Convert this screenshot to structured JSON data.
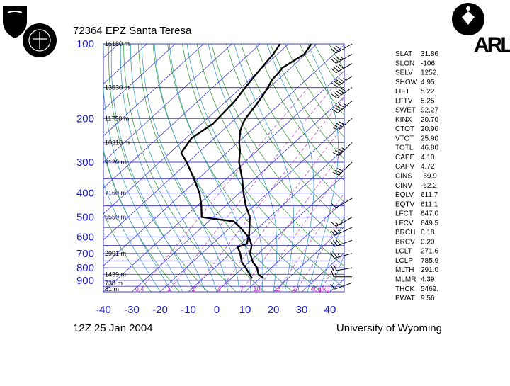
{
  "header": {
    "station": "72364 EPZ Santa Teresa",
    "time": "12Z 25 Jan 2004",
    "credit": "University of Wyoming",
    "logo_text": "ARL"
  },
  "chart_data": {
    "type": "line",
    "subtype": "skew-T log-P diagram",
    "xlabel": "",
    "ylabel": "",
    "x_ticks": [
      "-40",
      "-30",
      "-20",
      "-10",
      "0",
      "10",
      "20",
      "30",
      "40"
    ],
    "y_ticks": [
      {
        "p": 100,
        "label": "100"
      },
      {
        "p": 200,
        "label": "200"
      },
      {
        "p": 300,
        "label": "300"
      },
      {
        "p": 400,
        "label": "400"
      },
      {
        "p": 500,
        "label": "500"
      },
      {
        "p": 600,
        "label": "600"
      },
      {
        "p": 700,
        "label": "700"
      },
      {
        "p": 800,
        "label": "800"
      },
      {
        "p": 900,
        "label": "900"
      }
    ],
    "xlim": [
      -40,
      45
    ],
    "plim": [
      1000,
      100
    ],
    "height_labels": [
      {
        "p": 100,
        "label": "16180 m"
      },
      {
        "p": 150,
        "label": "13630 m"
      },
      {
        "p": 200,
        "label": "11750 m"
      },
      {
        "p": 250,
        "label": "10310 m"
      },
      {
        "p": 300,
        "label": "9120 m"
      },
      {
        "p": 400,
        "label": "7160 m"
      },
      {
        "p": 500,
        "label": "5550 m"
      },
      {
        "p": 700,
        "label": "2991 m"
      },
      {
        "p": 850,
        "label": "1439 m"
      },
      {
        "p": 925,
        "label": "738 m"
      },
      {
        "p": 1000,
        "label": "81 m"
      }
    ],
    "mixing_ratio_labels": [
      "0.4",
      "1",
      "2",
      "4",
      "7",
      "10",
      "16",
      "24",
      "40g/kg"
    ],
    "mixing_ratio_values": [
      0.4,
      1,
      2,
      4,
      7,
      10,
      16,
      24,
      40
    ],
    "series": [
      {
        "name": "",
        "role": "temperature",
        "points": [
          {
            "p": 881,
            "t": 11.2
          },
          {
            "p": 850,
            "t": 8.0
          },
          {
            "p": 800,
            "t": 5.0
          },
          {
            "p": 760,
            "t": 1.4
          },
          {
            "p": 700,
            "t": -3.0
          },
          {
            "p": 650,
            "t": -5.5
          },
          {
            "p": 600,
            "t": -9.8
          },
          {
            "p": 560,
            "t": -12.5
          },
          {
            "p": 500,
            "t": -17.0
          },
          {
            "p": 450,
            "t": -22.8
          },
          {
            "p": 400,
            "t": -28.5
          },
          {
            "p": 350,
            "t": -34.5
          },
          {
            "p": 300,
            "t": -42.0
          },
          {
            "p": 270,
            "t": -46.0
          },
          {
            "p": 250,
            "t": -49.5
          },
          {
            "p": 225,
            "t": -53.5
          },
          {
            "p": 210,
            "t": -55.5
          },
          {
            "p": 200,
            "t": -56.5
          },
          {
            "p": 170,
            "t": -58.5
          },
          {
            "p": 150,
            "t": -60.5
          },
          {
            "p": 140,
            "t": -62.0
          },
          {
            "p": 130,
            "t": -62.5
          },
          {
            "p": 125,
            "t": -63.0
          },
          {
            "p": 110,
            "t": -60.5
          },
          {
            "p": 100,
            "t": -62.0
          }
        ]
      },
      {
        "name": "",
        "role": "dewpoint",
        "points": [
          {
            "p": 881,
            "t": 7.2
          },
          {
            "p": 800,
            "t": 1.0
          },
          {
            "p": 760,
            "t": -2.5
          },
          {
            "p": 700,
            "t": -6.5
          },
          {
            "p": 660,
            "t": -9.8
          },
          {
            "p": 640,
            "t": -7.8
          },
          {
            "p": 600,
            "t": -10.0
          },
          {
            "p": 550,
            "t": -16.5
          },
          {
            "p": 520,
            "t": -21.0
          },
          {
            "p": 500,
            "t": -34.0
          },
          {
            "p": 450,
            "t": -38.5
          },
          {
            "p": 400,
            "t": -44.0
          },
          {
            "p": 350,
            "t": -51.5
          },
          {
            "p": 300,
            "t": -60.5
          },
          {
            "p": 275,
            "t": -66.0
          },
          {
            "p": 240,
            "t": -68.0
          },
          {
            "p": 210,
            "t": -66.0
          },
          {
            "p": 170,
            "t": -67.0
          },
          {
            "p": 150,
            "t": -68.5
          },
          {
            "p": 130,
            "t": -70.0
          },
          {
            "p": 110,
            "t": -71.5
          },
          {
            "p": 100,
            "t": -73.0
          }
        ]
      }
    ],
    "wind_barbs": [
      {
        "p": 920,
        "dir": 250,
        "speed_kt": 10
      },
      {
        "p": 870,
        "dir": 270,
        "speed_kt": 15
      },
      {
        "p": 800,
        "dir": 260,
        "speed_kt": 20
      },
      {
        "p": 700,
        "dir": 255,
        "speed_kt": 25
      },
      {
        "p": 620,
        "dir": 250,
        "speed_kt": 30
      },
      {
        "p": 550,
        "dir": 245,
        "speed_kt": 25
      },
      {
        "p": 500,
        "dir": 240,
        "speed_kt": 15
      },
      {
        "p": 420,
        "dir": 240,
        "speed_kt": 10
      },
      {
        "p": 300,
        "dir": 225,
        "speed_kt": 30
      },
      {
        "p": 250,
        "dir": 225,
        "speed_kt": 35
      },
      {
        "p": 200,
        "dir": 230,
        "speed_kt": 40
      },
      {
        "p": 170,
        "dir": 230,
        "speed_kt": 45
      },
      {
        "p": 150,
        "dir": 235,
        "speed_kt": 50
      },
      {
        "p": 135,
        "dir": 235,
        "speed_kt": 45
      },
      {
        "p": 120,
        "dir": 240,
        "speed_kt": 40
      },
      {
        "p": 110,
        "dir": 240,
        "speed_kt": 35
      },
      {
        "p": 100,
        "dir": 240,
        "speed_kt": 30
      }
    ],
    "colors": {
      "isobar": "#4040d0",
      "isotherm": "#4040d0",
      "dry_adiabat": "#40a040",
      "moist_adiabat": "#40a0c0",
      "mixing_ratio": "#c040c0",
      "label_blue": "#1a1ac8",
      "label_magenta": "#c020c0",
      "profile": "#000000"
    }
  },
  "indices": [
    {
      "name": "SLAT",
      "value": "31.86"
    },
    {
      "name": "SLON",
      "value": "-106."
    },
    {
      "name": "SELV",
      "value": "1252."
    },
    {
      "name": "SHOW",
      "value": "4.95"
    },
    {
      "name": "LIFT",
      "value": "5.22"
    },
    {
      "name": "LFTV",
      "value": "5.25"
    },
    {
      "name": "SWET",
      "value": "92.27"
    },
    {
      "name": "KINX",
      "value": "20.70"
    },
    {
      "name": "CTOT",
      "value": "20.90"
    },
    {
      "name": "VTOT",
      "value": "25.90"
    },
    {
      "name": "TOTL",
      "value": "46.80"
    },
    {
      "name": "CAPE",
      "value": "4.10"
    },
    {
      "name": "CAPV",
      "value": "4.72"
    },
    {
      "name": "CINS",
      "value": "-69.9"
    },
    {
      "name": "CINV",
      "value": "-62.2"
    },
    {
      "name": "EQLV",
      "value": "611.7"
    },
    {
      "name": "EQTV",
      "value": "611.1"
    },
    {
      "name": "LFCT",
      "value": "647.0"
    },
    {
      "name": "LFCV",
      "value": "649.5"
    },
    {
      "name": "BRCH",
      "value": "0.18"
    },
    {
      "name": "BRCV",
      "value": "0.20"
    },
    {
      "name": "LCLT",
      "value": "271.6"
    },
    {
      "name": "LCLP",
      "value": "785.9"
    },
    {
      "name": "MLTH",
      "value": "291.0"
    },
    {
      "name": "MLMR",
      "value": "4.39"
    },
    {
      "name": "THCK",
      "value": "5469."
    },
    {
      "name": "PWAT",
      "value": "9.56"
    }
  ]
}
